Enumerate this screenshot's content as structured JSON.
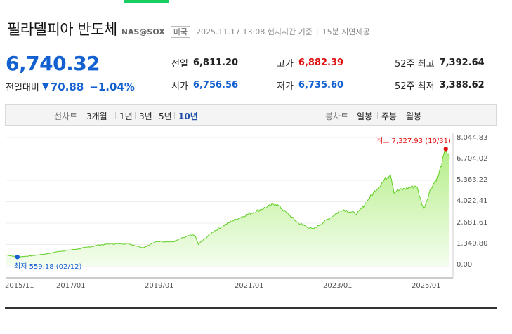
{
  "header": {
    "title": "필라델피아 반도체",
    "code": "NAS@SOX",
    "market": "미국",
    "datetime": "2025.11.17 13:08 현지시간 기준",
    "delay": "15분 지연제공"
  },
  "quote": {
    "price": "6,740.32",
    "change_label": "전일대비",
    "change_icon": "down-triangle-icon",
    "change_value": "70.88",
    "change_percent": "−1.04%"
  },
  "stats": {
    "prev_close_label": "전일",
    "prev_close": "6,811.20",
    "open_label": "시가",
    "open": "6,756.56",
    "high_label": "고가",
    "high": "6,882.39",
    "low_label": "저가",
    "low": "6,735.60",
    "w52_high_label": "52주 최고",
    "w52_high": "7,392.64",
    "w52_low_label": "52주 최저",
    "w52_low": "3,388.62"
  },
  "tabs": {
    "line_head": "선차트",
    "line_periods": [
      "3개월",
      "1년",
      "3년",
      "5년",
      "10년"
    ],
    "line_selected": "10년",
    "candle_head": "봉차트",
    "candle_periods": [
      "일봉",
      "주봉",
      "월봉"
    ]
  },
  "colors": {
    "up": "#e01010",
    "down": "#1360d0",
    "line": "#5fcf22",
    "area_top": "#b6ee8a",
    "accent_tab": "#19ce60"
  },
  "chart_data": {
    "type": "area",
    "yticks": [
      "8,044.83",
      "6,704.02",
      "5,363.22",
      "4,022.41",
      "2,681.61",
      "1,340.80",
      "0.00"
    ],
    "xticks": [
      "2015/11",
      "2017/01",
      "2019/01",
      "2021/01",
      "2023/01",
      "2025/01"
    ],
    "ylim": [
      0,
      8044.83
    ],
    "grid": "horizontal",
    "max_annotation": "최고 7,327.93 (10/31)",
    "min_annotation": "최저 559.18 (02/12)",
    "series": [
      {
        "values": [
          [
            "2015-11",
            690
          ],
          [
            "2016-02",
            559.18
          ],
          [
            "2016-06",
            640
          ],
          [
            "2016-10",
            760
          ],
          [
            "2017-01",
            900
          ],
          [
            "2017-06",
            1050
          ],
          [
            "2017-12",
            1300
          ],
          [
            "2018-03",
            1380
          ],
          [
            "2018-08",
            1400
          ],
          [
            "2018-12",
            1150
          ],
          [
            "2019-04",
            1550
          ],
          [
            "2019-08",
            1500
          ],
          [
            "2019-12",
            1850
          ],
          [
            "2020-02",
            1950
          ],
          [
            "2020-03",
            1350
          ],
          [
            "2020-07",
            2150
          ],
          [
            "2020-12",
            2800
          ],
          [
            "2021-04",
            3200
          ],
          [
            "2021-08",
            3550
          ],
          [
            "2021-12",
            3900
          ],
          [
            "2022-03",
            3300
          ],
          [
            "2022-06",
            2700
          ],
          [
            "2022-10",
            2300
          ],
          [
            "2023-01",
            2750
          ],
          [
            "2023-06",
            3550
          ],
          [
            "2023-10",
            3250
          ],
          [
            "2023-12",
            3850
          ],
          [
            "2024-03",
            4750
          ],
          [
            "2024-07",
            5800
          ],
          [
            "2024-08",
            4650
          ],
          [
            "2024-12",
            4900
          ],
          [
            "2025-02",
            5050
          ],
          [
            "2025-04",
            3550
          ],
          [
            "2025-06",
            4900
          ],
          [
            "2025-08",
            5650
          ],
          [
            "2025-10",
            7327.93
          ],
          [
            "2025-11",
            6740.32
          ]
        ]
      }
    ]
  }
}
